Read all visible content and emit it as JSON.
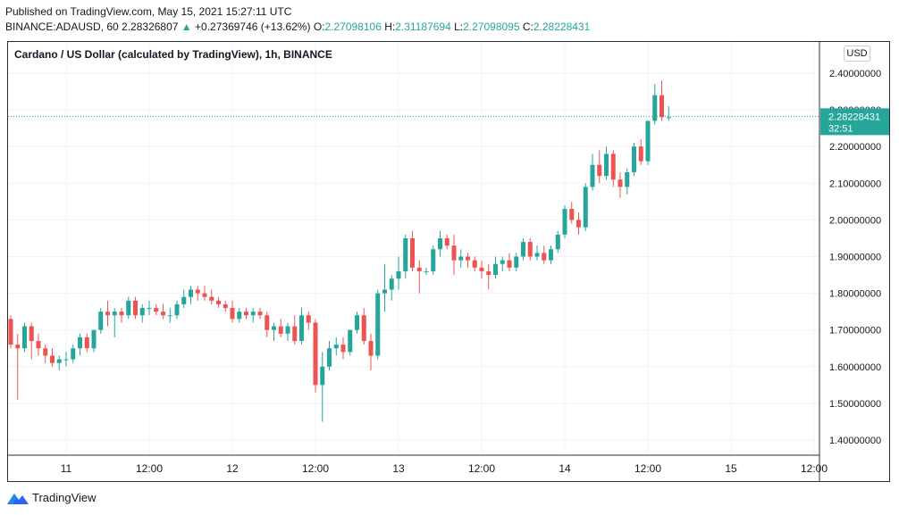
{
  "header": {
    "published_line": "Published on TradingView.com, May 15, 2021 15:27:11 UTC",
    "symbol": "BINANCE:ADAUSD, 60",
    "last": "2.28326807",
    "arrow": "▲",
    "change": "+0.27369746 (+13.62%)",
    "o_label": "O:",
    "o_value": "2.27098106",
    "h_label": "H:",
    "h_value": "2.31187694",
    "l_label": "L:",
    "l_value": "2.27098095",
    "c_label": "C:",
    "c_value": "2.28228431"
  },
  "chart_title": "Cardano / US Dollar (calculated by TradingView), 1h, BINANCE",
  "currency_button": "USD",
  "price_label": "2.28228431",
  "countdown": "32:51",
  "footer": {
    "brand": "TradingView"
  },
  "colors": {
    "up": "#26a69a",
    "down": "#ef5350",
    "grid": "#f0f3fa",
    "price_line": "#26a69a"
  },
  "chart_data": {
    "type": "candlestick",
    "title": "Cardano / US Dollar (calculated by TradingView), 1h, BINANCE",
    "ylim": [
      1.36,
      2.43
    ],
    "yticks": [
      "2.40000000",
      "2.30000000",
      "2.20000000",
      "2.10000000",
      "2.00000000",
      "1.90000000",
      "1.80000000",
      "1.70000000",
      "1.60000000",
      "1.50000000",
      "1.40000000"
    ],
    "xticks": [
      {
        "label": "11",
        "slot": 8
      },
      {
        "label": "12:00",
        "slot": 20
      },
      {
        "label": "12",
        "slot": 32
      },
      {
        "label": "12:00",
        "slot": 44
      },
      {
        "label": "13",
        "slot": 56
      },
      {
        "label": "12:00",
        "slot": 68
      },
      {
        "label": "14",
        "slot": 80
      },
      {
        "label": "12:00",
        "slot": 92
      },
      {
        "label": "15",
        "slot": 104
      },
      {
        "label": "12:00",
        "slot": 116
      }
    ],
    "last_price": 2.28228431,
    "candles": [
      [
        1.73,
        1.74,
        1.65,
        1.66
      ],
      [
        1.66,
        1.69,
        1.51,
        1.65
      ],
      [
        1.65,
        1.72,
        1.64,
        1.71
      ],
      [
        1.71,
        1.72,
        1.62,
        1.67
      ],
      [
        1.67,
        1.69,
        1.63,
        1.65
      ],
      [
        1.65,
        1.66,
        1.61,
        1.63
      ],
      [
        1.63,
        1.65,
        1.6,
        1.61
      ],
      [
        1.61,
        1.63,
        1.59,
        1.62
      ],
      [
        1.62,
        1.64,
        1.6,
        1.62
      ],
      [
        1.62,
        1.66,
        1.61,
        1.65
      ],
      [
        1.65,
        1.69,
        1.63,
        1.68
      ],
      [
        1.68,
        1.69,
        1.64,
        1.65
      ],
      [
        1.65,
        1.7,
        1.64,
        1.7
      ],
      [
        1.7,
        1.76,
        1.69,
        1.75
      ],
      [
        1.75,
        1.78,
        1.71,
        1.74
      ],
      [
        1.74,
        1.76,
        1.68,
        1.75
      ],
      [
        1.75,
        1.76,
        1.72,
        1.74
      ],
      [
        1.74,
        1.79,
        1.73,
        1.78
      ],
      [
        1.78,
        1.79,
        1.73,
        1.74
      ],
      [
        1.74,
        1.77,
        1.72,
        1.76
      ],
      [
        1.76,
        1.78,
        1.74,
        1.76
      ],
      [
        1.76,
        1.77,
        1.74,
        1.75
      ],
      [
        1.75,
        1.77,
        1.73,
        1.74
      ],
      [
        1.74,
        1.76,
        1.72,
        1.74
      ],
      [
        1.74,
        1.78,
        1.73,
        1.77
      ],
      [
        1.77,
        1.81,
        1.76,
        1.79
      ],
      [
        1.79,
        1.82,
        1.77,
        1.81
      ],
      [
        1.81,
        1.82,
        1.78,
        1.8
      ],
      [
        1.8,
        1.82,
        1.78,
        1.79
      ],
      [
        1.79,
        1.81,
        1.77,
        1.78
      ],
      [
        1.78,
        1.79,
        1.76,
        1.77
      ],
      [
        1.77,
        1.78,
        1.75,
        1.76
      ],
      [
        1.76,
        1.78,
        1.72,
        1.73
      ],
      [
        1.73,
        1.76,
        1.72,
        1.75
      ],
      [
        1.75,
        1.76,
        1.73,
        1.74
      ],
      [
        1.74,
        1.76,
        1.72,
        1.75
      ],
      [
        1.75,
        1.76,
        1.73,
        1.74
      ],
      [
        1.74,
        1.75,
        1.68,
        1.7
      ],
      [
        1.7,
        1.72,
        1.67,
        1.71
      ],
      [
        1.71,
        1.73,
        1.68,
        1.69
      ],
      [
        1.69,
        1.72,
        1.67,
        1.71
      ],
      [
        1.71,
        1.74,
        1.66,
        1.67
      ],
      [
        1.67,
        1.76,
        1.66,
        1.74
      ],
      [
        1.74,
        1.75,
        1.7,
        1.72
      ],
      [
        1.72,
        1.73,
        1.53,
        1.55
      ],
      [
        1.55,
        1.64,
        1.45,
        1.6
      ],
      [
        1.6,
        1.67,
        1.59,
        1.65
      ],
      [
        1.65,
        1.68,
        1.63,
        1.66
      ],
      [
        1.66,
        1.68,
        1.62,
        1.64
      ],
      [
        1.64,
        1.7,
        1.63,
        1.7
      ],
      [
        1.7,
        1.75,
        1.69,
        1.74
      ],
      [
        1.74,
        1.76,
        1.66,
        1.67
      ],
      [
        1.67,
        1.69,
        1.59,
        1.63
      ],
      [
        1.63,
        1.81,
        1.62,
        1.8
      ],
      [
        1.8,
        1.88,
        1.75,
        1.81
      ],
      [
        1.81,
        1.85,
        1.78,
        1.84
      ],
      [
        1.84,
        1.9,
        1.81,
        1.86
      ],
      [
        1.86,
        1.96,
        1.84,
        1.95
      ],
      [
        1.95,
        1.97,
        1.86,
        1.87
      ],
      [
        1.87,
        1.89,
        1.8,
        1.86
      ],
      [
        1.86,
        1.87,
        1.85,
        1.86
      ],
      [
        1.86,
        1.93,
        1.85,
        1.92
      ],
      [
        1.92,
        1.97,
        1.9,
        1.95
      ],
      [
        1.95,
        1.96,
        1.92,
        1.93
      ],
      [
        1.93,
        1.96,
        1.85,
        1.89
      ],
      [
        1.89,
        1.92,
        1.87,
        1.9
      ],
      [
        1.9,
        1.91,
        1.87,
        1.89
      ],
      [
        1.89,
        1.9,
        1.86,
        1.87
      ],
      [
        1.87,
        1.89,
        1.84,
        1.86
      ],
      [
        1.86,
        1.88,
        1.81,
        1.85
      ],
      [
        1.85,
        1.9,
        1.84,
        1.88
      ],
      [
        1.88,
        1.9,
        1.86,
        1.89
      ],
      [
        1.89,
        1.91,
        1.86,
        1.87
      ],
      [
        1.87,
        1.91,
        1.86,
        1.9
      ],
      [
        1.9,
        1.95,
        1.89,
        1.94
      ],
      [
        1.94,
        1.95,
        1.89,
        1.9
      ],
      [
        1.9,
        1.93,
        1.89,
        1.91
      ],
      [
        1.91,
        1.93,
        1.88,
        1.89
      ],
      [
        1.89,
        1.93,
        1.88,
        1.92
      ],
      [
        1.92,
        1.97,
        1.91,
        1.96
      ],
      [
        1.96,
        2.04,
        1.95,
        2.03
      ],
      [
        2.03,
        2.05,
        1.99,
        2.0
      ],
      [
        2.0,
        2.02,
        1.96,
        1.98
      ],
      [
        1.98,
        2.1,
        1.97,
        2.09
      ],
      [
        2.09,
        2.18,
        2.08,
        2.15
      ],
      [
        2.15,
        2.19,
        2.1,
        2.12
      ],
      [
        2.12,
        2.2,
        2.11,
        2.18
      ],
      [
        2.18,
        2.19,
        2.09,
        2.11
      ],
      [
        2.11,
        2.13,
        2.06,
        2.09
      ],
      [
        2.09,
        2.14,
        2.07,
        2.13
      ],
      [
        2.13,
        2.21,
        2.12,
        2.2
      ],
      [
        2.2,
        2.22,
        2.15,
        2.16
      ],
      [
        2.16,
        2.27,
        2.15,
        2.27
      ],
      [
        2.27,
        2.37,
        2.26,
        2.34
      ],
      [
        2.34,
        2.38,
        2.27,
        2.28
      ],
      [
        2.28,
        2.31,
        2.27,
        2.28
      ]
    ]
  }
}
